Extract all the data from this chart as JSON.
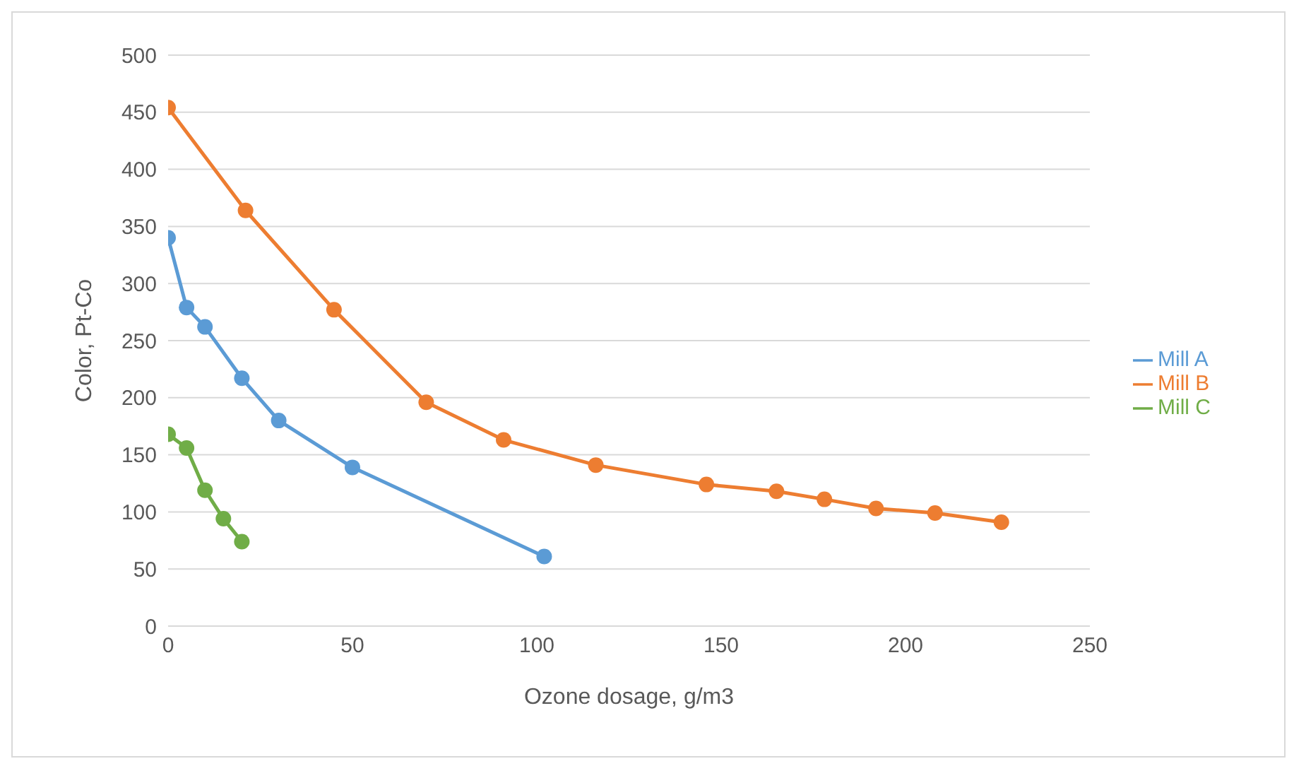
{
  "chart_data": {
    "type": "line",
    "xlabel": "Ozone dosage, g/m3",
    "ylabel": "Color, Pt-Co",
    "xlim": [
      0,
      250
    ],
    "xticks": [
      0,
      50,
      100,
      150,
      200,
      250
    ],
    "ylim": [
      0,
      500
    ],
    "yticks": [
      0,
      50,
      100,
      150,
      200,
      250,
      300,
      350,
      400,
      450,
      500
    ],
    "grid": "y",
    "legend": "right",
    "marker": "circle",
    "line_style": "solid",
    "series": [
      {
        "name": "Mill A",
        "color": "#5b9bd5",
        "x": [
          0,
          5,
          10,
          20,
          30,
          50,
          102
        ],
        "values": [
          340,
          279,
          262,
          217,
          180,
          139,
          61
        ]
      },
      {
        "name": "Mill B",
        "color": "#ed7d31",
        "x": [
          0,
          21,
          45,
          70,
          91,
          116,
          146,
          165,
          178,
          192,
          208,
          226
        ],
        "values": [
          454,
          364,
          277,
          196,
          163,
          141,
          124,
          118,
          111,
          103,
          99,
          91
        ]
      },
      {
        "name": "Mill C",
        "color": "#70ad47",
        "x": [
          0,
          5,
          10,
          15,
          20
        ],
        "values": [
          168,
          156,
          119,
          94,
          74
        ]
      }
    ]
  }
}
